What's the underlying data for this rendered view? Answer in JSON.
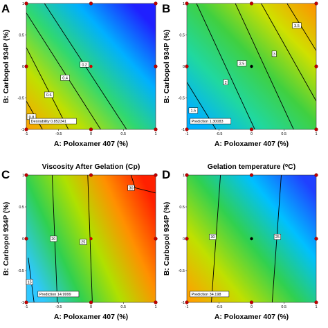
{
  "chart_data": [
    {
      "panel": "A",
      "type": "heatmap",
      "title": "",
      "xlabel": "A: Poloxamer 407 (%)",
      "ylabel": "B: Carbopol 934P (%)",
      "xlim": [
        -1,
        1
      ],
      "ylim": [
        -1,
        1
      ],
      "x_ticks": [
        "-1",
        "-0.5",
        "0",
        "0.5",
        "1"
      ],
      "y_ticks": [
        "-1",
        "-0.5",
        "0",
        "0.5",
        "1"
      ],
      "colormap": [
        "#2020ff",
        "#00b0ff",
        "#30d870",
        "#c0e000",
        "#ffa000"
      ],
      "contours": [
        {
          "label": "0.2",
          "level": 0.2,
          "points": [
            [
              -0.72,
              1
            ],
            [
              0.55,
              -1
            ]
          ],
          "label_at": [
            -0.1,
            0.03
          ]
        },
        {
          "label": "0.4",
          "level": 0.4,
          "points": [
            [
              -1,
              0.85
            ],
            [
              0.15,
              -1
            ]
          ],
          "label_at": [
            -0.4,
            -0.18
          ]
        },
        {
          "label": "0.6",
          "level": 0.6,
          "points": [
            [
              -1,
              0.3
            ],
            [
              -0.35,
              -1
            ]
          ],
          "label_at": [
            -0.65,
            -0.45
          ]
        },
        {
          "label": "0.8",
          "level": 0.8,
          "points": [
            [
              -1,
              -0.55
            ],
            [
              -0.75,
              -1
            ]
          ],
          "label_at": [
            -0.92,
            -0.8
          ]
        }
      ],
      "prediction": {
        "label": "Desirability",
        "value": "0.852341",
        "at": [
          -0.95,
          -0.88
        ]
      },
      "center_point": {
        "x": 0,
        "y": 0,
        "style": "red"
      },
      "design_points": [
        [
          -1,
          -1
        ],
        [
          -1,
          1
        ],
        [
          1,
          -1
        ],
        [
          1,
          1
        ],
        [
          -1,
          0
        ],
        [
          1,
          0
        ],
        [
          0,
          -1
        ],
        [
          0,
          1
        ]
      ]
    },
    {
      "panel": "B",
      "type": "heatmap",
      "title": "",
      "xlabel": "A: Poloxamer 407 (%)",
      "ylabel": "B: Carbopol 934P (%)",
      "xlim": [
        -1,
        1
      ],
      "ylim": [
        -1,
        1
      ],
      "x_ticks": [
        "-1",
        "-0.5",
        "0",
        "0.5",
        "1"
      ],
      "y_ticks": [
        "-1",
        "-0.5",
        "0",
        "0.5",
        "1"
      ],
      "colormap": [
        "#00b0ff",
        "#20d8a0",
        "#40d040",
        "#d0e000",
        "#ff9000"
      ],
      "contours": [
        {
          "label": "1.5",
          "level": 1.5,
          "points": [
            [
              -1,
              -0.25
            ],
            [
              -0.55,
              -1
            ]
          ],
          "label_at": [
            -0.9,
            -0.7
          ]
        },
        {
          "label": "2",
          "level": 2,
          "points": [
            [
              -0.85,
              1
            ],
            [
              0.05,
              -1
            ]
          ],
          "label_at": [
            -0.4,
            -0.25
          ]
        },
        {
          "label": "2.5",
          "level": 2.5,
          "points": [
            [
              -0.25,
              1
            ],
            [
              0.65,
              -1
            ]
          ],
          "label_at": [
            -0.15,
            0.05
          ]
        },
        {
          "label": "3",
          "level": 3,
          "points": [
            [
              0.15,
              1
            ],
            [
              1,
              -0.55
            ]
          ],
          "label_at": [
            0.35,
            0.2
          ]
        },
        {
          "label": "3.5",
          "level": 3.5,
          "points": [
            [
              0.55,
              1
            ],
            [
              1,
              0.25
            ]
          ],
          "label_at": [
            0.7,
            0.65
          ]
        }
      ],
      "prediction": {
        "label": "Prediction",
        "value": "1.30083",
        "at": [
          -0.95,
          -0.88
        ]
      },
      "center_point": {
        "x": 0,
        "y": 0,
        "style": "black"
      },
      "design_points": [
        [
          -1,
          -1
        ],
        [
          -1,
          1
        ],
        [
          1,
          -1
        ],
        [
          1,
          1
        ],
        [
          -1,
          0
        ],
        [
          1,
          0
        ],
        [
          0,
          -1
        ],
        [
          0,
          1
        ]
      ]
    },
    {
      "panel": "C",
      "type": "heatmap",
      "title": "Viscosity After Gelation (Cp)",
      "xlabel": "A: Poloxamer 407 (%)",
      "ylabel": "B: Carbopol 934P (%)",
      "xlim": [
        -1,
        1
      ],
      "ylim": [
        -1,
        1
      ],
      "x_ticks": [
        "-1",
        "-0.5",
        "0",
        "0.5",
        "1"
      ],
      "y_ticks": [
        "-1",
        "-0.5",
        "0",
        "0.5",
        "1"
      ],
      "colormap": [
        "#30c8ff",
        "#30d050",
        "#b0e000",
        "#ff9000",
        "#ff2000"
      ],
      "contours": [
        {
          "label": "15",
          "level": 15,
          "points": [
            [
              -0.97,
              -0.3
            ],
            [
              -0.88,
              -1
            ]
          ],
          "label_at": [
            -0.95,
            -0.68
          ]
        },
        {
          "label": "20",
          "level": 20,
          "points": [
            [
              -0.6,
              1
            ],
            [
              -0.52,
              -1
            ]
          ],
          "label_at": [
            -0.58,
            0.0
          ]
        },
        {
          "label": "25",
          "level": 25,
          "points": [
            [
              -0.05,
              1
            ],
            [
              0.02,
              -1
            ]
          ],
          "label_at": [
            -0.12,
            -0.05
          ]
        },
        {
          "label": "30",
          "level": 30,
          "points": [
            [
              0.62,
              1
            ],
            [
              0.68,
              0.8
            ],
            [
              1,
              0.72
            ]
          ],
          "label_at": [
            0.62,
            0.8
          ]
        }
      ],
      "prediction": {
        "label": "Prediction",
        "value": "14.9999",
        "at": [
          -0.82,
          -0.88
        ]
      },
      "center_point": {
        "x": 0,
        "y": 0,
        "style": "red"
      },
      "design_points": [
        [
          -1,
          -1
        ],
        [
          -1,
          1
        ],
        [
          1,
          -1
        ],
        [
          1,
          1
        ],
        [
          -1,
          0
        ],
        [
          1,
          0
        ],
        [
          0,
          -1
        ],
        [
          0,
          1
        ]
      ]
    },
    {
      "panel": "D",
      "type": "heatmap",
      "title": "Gelation temperature (",
      "title_sup": "o",
      "title_end": "C)",
      "xlabel": "A: Poloxamer 407 (%)",
      "ylabel": "B: Carbopol 934P (%)",
      "xlim": [
        -1,
        1
      ],
      "ylim": [
        -1,
        1
      ],
      "x_ticks": [
        "-1",
        "-0.5",
        "0",
        "0.5",
        "1"
      ],
      "y_ticks": [
        "-1",
        "-0.5",
        "0",
        "0.5",
        "1"
      ],
      "colormap": [
        "#ffa000",
        "#c0e000",
        "#30d050",
        "#00c0ff",
        "#2040ff"
      ],
      "contours": [
        {
          "label": "30",
          "level": 30,
          "points": [
            [
              -0.48,
              1
            ],
            [
              -0.62,
              -1
            ]
          ],
          "label_at": [
            -0.6,
            0.03
          ]
        },
        {
          "label": "25",
          "level": 25,
          "points": [
            [
              0.46,
              1
            ],
            [
              0.32,
              -1
            ]
          ],
          "label_at": [
            0.4,
            0.03
          ]
        }
      ],
      "prediction": {
        "label": "Prediction",
        "value": "34.198",
        "at": [
          -0.95,
          -0.88
        ]
      },
      "center_point": {
        "x": 0,
        "y": 0,
        "style": "black"
      },
      "design_points": [
        [
          -1,
          -1
        ],
        [
          -1,
          1
        ],
        [
          1,
          -1
        ],
        [
          1,
          1
        ],
        [
          -1,
          0
        ],
        [
          1,
          0
        ],
        [
          0,
          -1
        ],
        [
          0,
          1
        ]
      ]
    }
  ]
}
